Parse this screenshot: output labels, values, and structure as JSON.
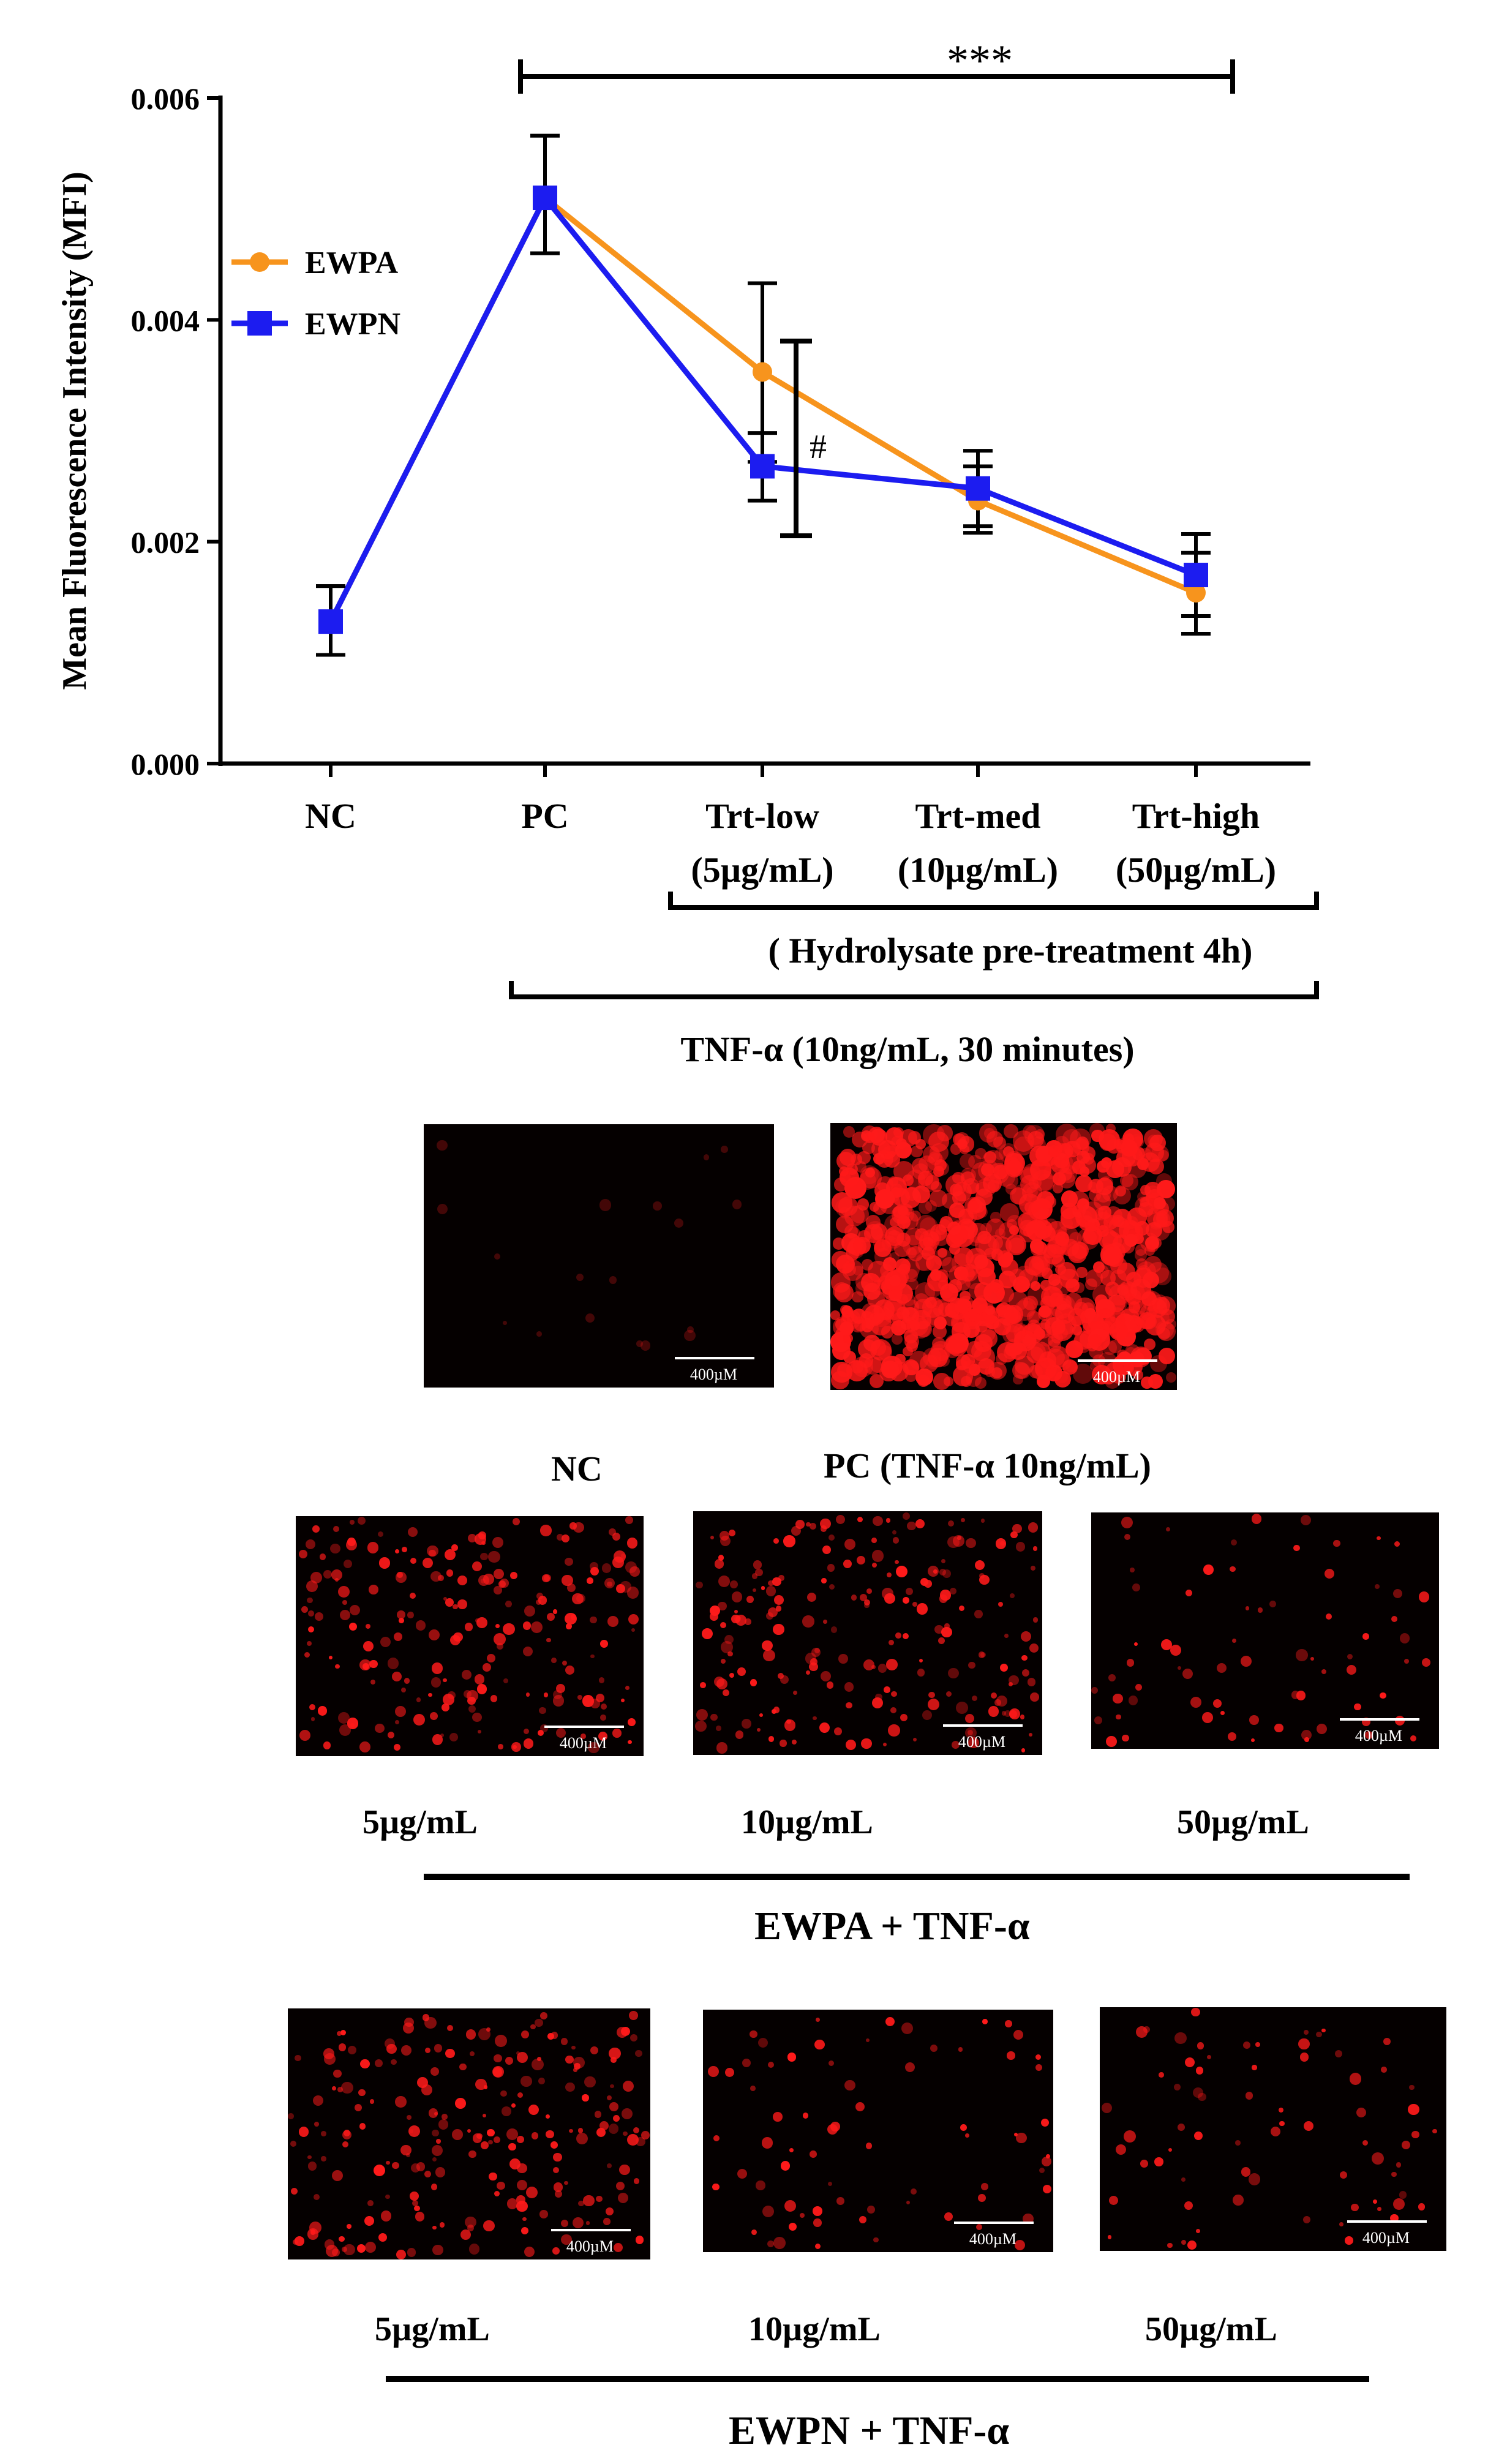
{
  "chart_data": {
    "type": "line",
    "ylabel": "Mean Fluorescence Intensity (MFI)",
    "ylim": [
      0,
      0.006
    ],
    "yticks": [
      "0.000",
      "0.002",
      "0.004",
      "0.006"
    ],
    "categories": [
      "NC",
      "PC",
      "Trt-low",
      "Trt-med",
      "Trt-high"
    ],
    "category_sublabels": [
      "",
      "",
      "(5µg/mL)",
      "(10µg/mL)",
      "(50µg/mL)"
    ],
    "series": [
      {
        "name": "EWPA",
        "color": "#f7941d",
        "marker": "circle",
        "values": [
          0.00128,
          0.0051,
          0.00353,
          0.00237,
          0.00154
        ],
        "err_low": [
          0.00098,
          0.0046,
          0.00272,
          0.00208,
          0.00117
        ],
        "err_high": [
          0.0016,
          0.00566,
          0.00433,
          0.00268,
          0.0019
        ]
      },
      {
        "name": "EWPN",
        "color": "#1c1cf0",
        "marker": "square",
        "values": [
          0.00128,
          0.0051,
          0.00268,
          0.00248,
          0.0017
        ],
        "err_low": [
          0.00098,
          0.0046,
          0.00237,
          0.00214,
          0.00133
        ],
        "err_high": [
          0.0016,
          0.00566,
          0.00298,
          0.00282,
          0.00207
        ]
      }
    ],
    "significance_label": "***",
    "hash_label": "#",
    "bracket1_label": "( Hydrolysate pre-treatment 4h)",
    "bracket2_label": "TNF-α (10ng/mL, 30 minutes)",
    "legend_position": "upper-left"
  },
  "micro_top": [
    {
      "scale": "400µM",
      "intensity": "none"
    },
    {
      "scale": "400µM",
      "intensity": "high"
    }
  ],
  "top_caption": {
    "nc": "NC",
    "pc": "PC (TNF-α 10ng/mL)"
  },
  "row1": {
    "images": [
      {
        "scale": "400µM",
        "intensity": "medium"
      },
      {
        "scale": "400µM",
        "intensity": "medium"
      },
      {
        "scale": "400µM",
        "intensity": "low"
      }
    ],
    "labels": [
      "5µg/mL",
      "10µg/mL",
      "50µg/mL"
    ],
    "group": "EWPA  + TNF-α"
  },
  "row2": {
    "images": [
      {
        "scale": "400µM",
        "intensity": "medium"
      },
      {
        "scale": "400µM",
        "intensity": "low"
      },
      {
        "scale": "400µM",
        "intensity": "low"
      }
    ],
    "labels": [
      "5µg/mL",
      "10µg/mL",
      "50µg/mL"
    ],
    "group": "EWPN  + TNF-α"
  }
}
